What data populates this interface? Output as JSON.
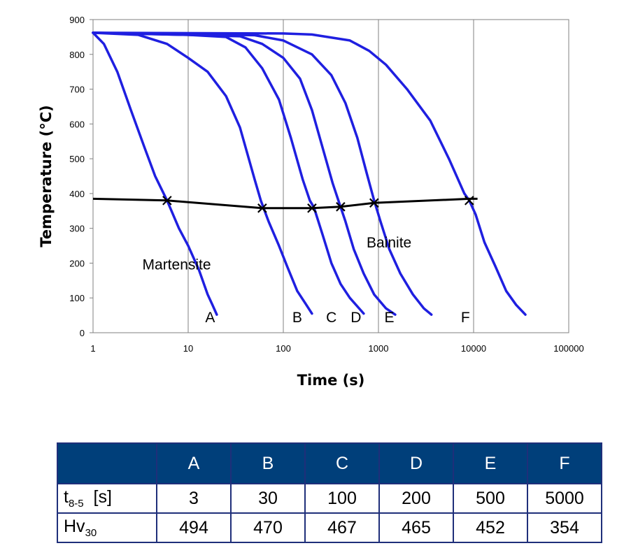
{
  "chart_data": {
    "type": "line",
    "xlabel": "Time (s)",
    "ylabel": "Temperature (°C)",
    "xscale": "log",
    "xlim": [
      1,
      100000
    ],
    "ylim": [
      0,
      900
    ],
    "xticks": [
      "1",
      "10",
      "100",
      "1000",
      "10000",
      "100000"
    ],
    "yticks": [
      "0",
      "100",
      "200",
      "300",
      "400",
      "500",
      "600",
      "700",
      "800",
      "900"
    ],
    "grid": "vertical",
    "curve_color": "#1f1fe0",
    "transition_color": "#000000",
    "series": [
      {
        "label": "A",
        "points": [
          [
            1,
            862
          ],
          [
            1.3,
            830
          ],
          [
            1.8,
            750
          ],
          [
            2.5,
            640
          ],
          [
            3.5,
            530
          ],
          [
            4.5,
            450
          ],
          [
            6,
            380
          ],
          [
            8,
            300
          ],
          [
            10,
            250
          ],
          [
            13,
            180
          ],
          [
            16,
            110
          ],
          [
            18,
            80
          ],
          [
            20,
            52
          ]
        ]
      },
      {
        "label": "B",
        "points": [
          [
            1,
            862
          ],
          [
            3,
            856
          ],
          [
            6,
            830
          ],
          [
            10,
            790
          ],
          [
            16,
            750
          ],
          [
            25,
            680
          ],
          [
            35,
            590
          ],
          [
            50,
            440
          ],
          [
            58,
            380
          ],
          [
            70,
            320
          ],
          [
            90,
            250
          ],
          [
            110,
            190
          ],
          [
            140,
            120
          ],
          [
            170,
            85
          ],
          [
            200,
            55
          ]
        ]
      },
      {
        "label": "C",
        "points": [
          [
            1,
            862
          ],
          [
            10,
            856
          ],
          [
            25,
            850
          ],
          [
            40,
            820
          ],
          [
            60,
            760
          ],
          [
            90,
            670
          ],
          [
            120,
            560
          ],
          [
            160,
            440
          ],
          [
            190,
            380
          ],
          [
            210,
            360
          ],
          [
            260,
            280
          ],
          [
            320,
            200
          ],
          [
            400,
            140
          ],
          [
            500,
            100
          ],
          [
            700,
            55
          ]
        ]
      },
      {
        "label": "D",
        "points": [
          [
            1,
            862
          ],
          [
            10,
            856
          ],
          [
            35,
            852
          ],
          [
            60,
            830
          ],
          [
            100,
            790
          ],
          [
            150,
            730
          ],
          [
            200,
            640
          ],
          [
            260,
            530
          ],
          [
            330,
            430
          ],
          [
            390,
            370
          ],
          [
            450,
            320
          ],
          [
            550,
            240
          ],
          [
            700,
            170
          ],
          [
            900,
            110
          ],
          [
            1200,
            70
          ],
          [
            1500,
            52
          ]
        ]
      },
      {
        "label": "E",
        "points": [
          [
            1,
            862
          ],
          [
            10,
            858
          ],
          [
            50,
            855
          ],
          [
            100,
            840
          ],
          [
            200,
            800
          ],
          [
            320,
            740
          ],
          [
            450,
            660
          ],
          [
            600,
            560
          ],
          [
            750,
            460
          ],
          [
            900,
            380
          ],
          [
            1050,
            320
          ],
          [
            1300,
            240
          ],
          [
            1700,
            170
          ],
          [
            2300,
            110
          ],
          [
            3000,
            70
          ],
          [
            3600,
            52
          ]
        ]
      },
      {
        "label": "F",
        "points": [
          [
            1,
            862
          ],
          [
            100,
            860
          ],
          [
            200,
            857
          ],
          [
            500,
            840
          ],
          [
            800,
            810
          ],
          [
            1200,
            770
          ],
          [
            2000,
            700
          ],
          [
            3500,
            610
          ],
          [
            5500,
            500
          ],
          [
            8000,
            400
          ],
          [
            9000,
            380
          ],
          [
            10500,
            340
          ],
          [
            13000,
            260
          ],
          [
            17000,
            190
          ],
          [
            22000,
            120
          ],
          [
            28000,
            80
          ],
          [
            35000,
            52
          ]
        ]
      }
    ],
    "transition_line": [
      [
        1,
        385
      ],
      [
        6,
        380
      ],
      [
        60,
        358
      ],
      [
        200,
        358
      ],
      [
        400,
        362
      ],
      [
        900,
        373
      ],
      [
        9000,
        385
      ],
      [
        11000,
        385
      ]
    ],
    "transition_markers": [
      [
        6,
        380
      ],
      [
        60,
        358
      ],
      [
        200,
        358
      ],
      [
        400,
        362
      ],
      [
        900,
        373
      ],
      [
        9000,
        380
      ]
    ],
    "curve_labels": [
      {
        "text": "A",
        "x": 17,
        "y": 30
      },
      {
        "text": "B",
        "x": 140,
        "y": 30
      },
      {
        "text": "C",
        "x": 320,
        "y": 30
      },
      {
        "text": "D",
        "x": 580,
        "y": 30
      },
      {
        "text": "E",
        "x": 1300,
        "y": 30
      },
      {
        "text": "F",
        "x": 8200,
        "y": 30
      }
    ],
    "annotations": [
      {
        "text": "Martensite",
        "x": 3.3,
        "y": 182
      },
      {
        "text": "Bainite",
        "x": 750,
        "y": 245
      }
    ]
  },
  "table": {
    "headers": [
      "A",
      "B",
      "C",
      "D",
      "E",
      "F"
    ],
    "rows": [
      {
        "label_main": "t",
        "label_sub": "8-5",
        "label_unit": "  [s]",
        "values": [
          "3",
          "30",
          "100",
          "200",
          "500",
          "5000"
        ]
      },
      {
        "label_main": "Hv",
        "label_sub": "30",
        "label_unit": "",
        "values": [
          "494",
          "470",
          "467",
          "465",
          "452",
          "354"
        ]
      }
    ]
  }
}
